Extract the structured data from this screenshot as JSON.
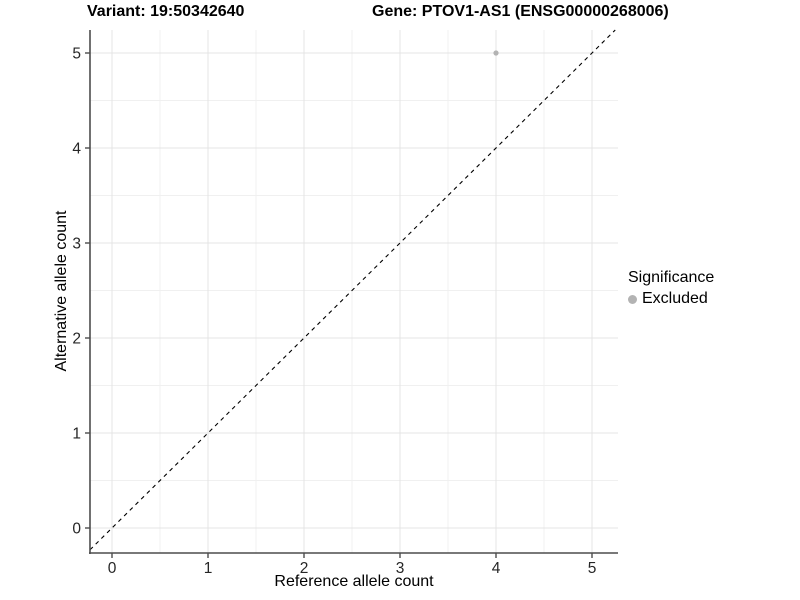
{
  "titles": {
    "variant_label": "Variant: 19:50342640",
    "gene_label": "Gene: PTOV1-AS1 (ENSG00000268006)"
  },
  "chart_data": {
    "type": "scatter",
    "xlabel": "Reference allele count",
    "ylabel": "Alternative allele count",
    "x_ticks": [
      0,
      1,
      2,
      3,
      4,
      5
    ],
    "y_ticks": [
      0,
      1,
      2,
      3,
      4,
      5
    ],
    "xlim": [
      -0.23,
      5.27
    ],
    "ylim": [
      -0.26,
      5.24
    ],
    "grid": "major+minor",
    "points": [
      {
        "x": 4,
        "y": 5,
        "significance": "Excluded"
      }
    ],
    "identity_line": {
      "style": "dashed",
      "slope": 1,
      "intercept": 0
    },
    "legend": {
      "title": "Significance",
      "position": "right",
      "entries": [
        {
          "label": "Excluded",
          "color": "#b3b3b3"
        }
      ]
    }
  },
  "colors": {
    "background": "#ffffff",
    "grid_major": "#e4e4e4",
    "grid_minor": "#f0f0f0",
    "axis_line": "#4d4d4d",
    "tick_label": "#262626",
    "identity_line": "#000000",
    "excluded_point": "#b3b3b3"
  }
}
